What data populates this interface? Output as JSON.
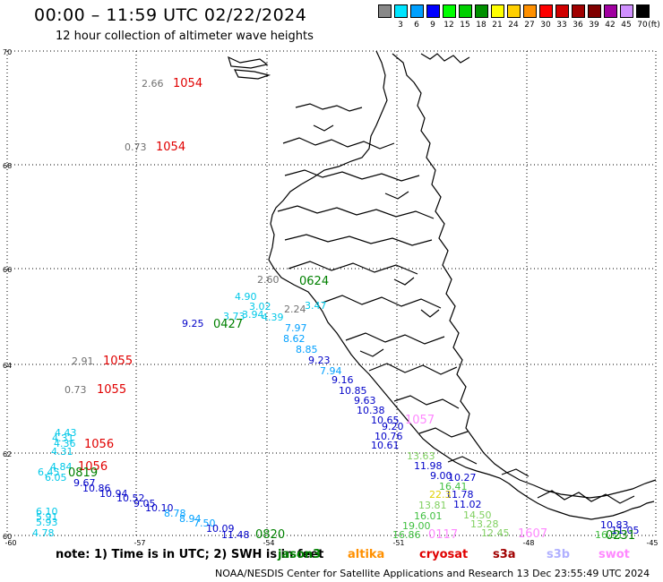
{
  "header": {
    "title": "00:00 – 11:59 UTC 02/22/2024",
    "subtitle": "12 hour collection of altimeter wave heights"
  },
  "colorbar": {
    "unit_label": "(ft)",
    "stops": [
      {
        "label": "",
        "color": "#888888"
      },
      {
        "label": "3",
        "color": "#00e5ff"
      },
      {
        "label": "6",
        "color": "#00a0ff"
      },
      {
        "label": "9",
        "color": "#0000ff"
      },
      {
        "label": "12",
        "color": "#00ff00"
      },
      {
        "label": "15",
        "color": "#00d000"
      },
      {
        "label": "18",
        "color": "#009000"
      },
      {
        "label": "21",
        "color": "#ffff00"
      },
      {
        "label": "24",
        "color": "#ffd000"
      },
      {
        "label": "27",
        "color": "#ff9000"
      },
      {
        "label": "30",
        "color": "#ff0000"
      },
      {
        "label": "33",
        "color": "#d00000"
      },
      {
        "label": "36",
        "color": "#a00000"
      },
      {
        "label": "39",
        "color": "#800000"
      },
      {
        "label": "42",
        "color": "#a000a0"
      },
      {
        "label": "45",
        "color": "#d090ff"
      },
      {
        "label": "70",
        "color": "#000000"
      }
    ]
  },
  "map": {
    "lat_labels": [
      "70",
      "68",
      "66",
      "64",
      "62",
      "60"
    ],
    "lon_labels": [
      "-60",
      "-57",
      "-54",
      "-51",
      "-48",
      "-45"
    ],
    "pass_times": [
      {
        "text": "1054",
        "color": "#e00000"
      },
      {
        "text": "1054",
        "color": "#e00000"
      },
      {
        "text": "1055",
        "color": "#e00000"
      },
      {
        "text": "1055",
        "color": "#e00000"
      },
      {
        "text": "1056",
        "color": "#e00000"
      },
      {
        "text": "1056",
        "color": "#e00000"
      },
      {
        "text": "0624",
        "color": "#008000"
      },
      {
        "text": "0427",
        "color": "#008000"
      },
      {
        "text": "0819",
        "color": "#008000"
      },
      {
        "text": "0820",
        "color": "#008000"
      },
      {
        "text": "0231",
        "color": "#008000"
      },
      {
        "text": "0117",
        "color": "#ff88ff"
      },
      {
        "text": "1607",
        "color": "#ff88ff"
      },
      {
        "text": "1057",
        "color": "#ff88ff"
      }
    ],
    "wave_heights": [
      {
        "text": "2.66",
        "color": "#707070"
      },
      {
        "text": "0.73",
        "color": "#707070"
      },
      {
        "text": "2.60",
        "color": "#707070"
      },
      {
        "text": "2.91",
        "color": "#707070"
      },
      {
        "text": "0.73",
        "color": "#707070"
      },
      {
        "text": "2.24",
        "color": "#707070"
      },
      {
        "text": "4.90",
        "color": "#00c8e8"
      },
      {
        "text": "3.02",
        "color": "#00c8e8"
      },
      {
        "text": "3.73",
        "color": "#00c8e8"
      },
      {
        "text": "3.94",
        "color": "#00c8e8"
      },
      {
        "text": "4.39",
        "color": "#00c8e8"
      },
      {
        "text": "3.47",
        "color": "#00c8e8"
      },
      {
        "text": "7.97",
        "color": "#00a0ff"
      },
      {
        "text": "8.62",
        "color": "#00a0ff"
      },
      {
        "text": "8.85",
        "color": "#00a0ff"
      },
      {
        "text": "9.25",
        "color": "#0000c8"
      },
      {
        "text": "9.23",
        "color": "#0000c8"
      },
      {
        "text": "7.94",
        "color": "#00a0ff"
      },
      {
        "text": "9.16",
        "color": "#0000c8"
      },
      {
        "text": "10.85",
        "color": "#0000c8"
      },
      {
        "text": "9.63",
        "color": "#0000c8"
      },
      {
        "text": "10.38",
        "color": "#0000c8"
      },
      {
        "text": "10.65",
        "color": "#0000c8"
      },
      {
        "text": "9.20",
        "color": "#0000c8"
      },
      {
        "text": "10.76",
        "color": "#0000c8"
      },
      {
        "text": "10.61",
        "color": "#0000c8"
      },
      {
        "text": "11.98",
        "color": "#0000c8"
      },
      {
        "text": "9.00",
        "color": "#0000c8"
      },
      {
        "text": "10.27",
        "color": "#0000c8"
      },
      {
        "text": "11.78",
        "color": "#0000c8"
      },
      {
        "text": "11.02",
        "color": "#0000c8"
      },
      {
        "text": "4.43",
        "color": "#00c8e8"
      },
      {
        "text": "4.31",
        "color": "#00c8e8"
      },
      {
        "text": "4.36",
        "color": "#00c8e8"
      },
      {
        "text": "4.31",
        "color": "#00c8e8"
      },
      {
        "text": "4.84",
        "color": "#00c8e8"
      },
      {
        "text": "6.45",
        "color": "#00c8e8"
      },
      {
        "text": "6.05",
        "color": "#00c8e8"
      },
      {
        "text": "9.67",
        "color": "#0000c8"
      },
      {
        "text": "10.86",
        "color": "#0000c8"
      },
      {
        "text": "10.94",
        "color": "#0000c8"
      },
      {
        "text": "10.52",
        "color": "#0000c8"
      },
      {
        "text": "9.05",
        "color": "#0000c8"
      },
      {
        "text": "10.10",
        "color": "#0000c8"
      },
      {
        "text": "8.78",
        "color": "#00a0ff"
      },
      {
        "text": "8.94",
        "color": "#00a0ff"
      },
      {
        "text": "7.50",
        "color": "#00a0ff"
      },
      {
        "text": "10.09",
        "color": "#0000c8"
      },
      {
        "text": "11.48",
        "color": "#0000c8"
      },
      {
        "text": "6.10",
        "color": "#00c8e8"
      },
      {
        "text": "5.91",
        "color": "#00c8e8"
      },
      {
        "text": "5.93",
        "color": "#00c8e8"
      },
      {
        "text": "4.78",
        "color": "#00c8e8"
      },
      {
        "text": "13.63",
        "color": "#80d060"
      },
      {
        "text": "16.41",
        "color": "#40c040"
      },
      {
        "text": "13.81",
        "color": "#80d060"
      },
      {
        "text": "22.3",
        "color": "#e0d000"
      },
      {
        "text": "16.01",
        "color": "#40c040"
      },
      {
        "text": "19.00",
        "color": "#40c040"
      },
      {
        "text": "16.86",
        "color": "#40c040"
      },
      {
        "text": "14.50",
        "color": "#80d060"
      },
      {
        "text": "13.28",
        "color": "#80d060"
      },
      {
        "text": "12.45",
        "color": "#80d060"
      },
      {
        "text": "16.31",
        "color": "#40c040"
      },
      {
        "text": "11.05",
        "color": "#0000c8"
      },
      {
        "text": "10.83",
        "color": "#0000c8"
      }
    ]
  },
  "note": {
    "prefix": "note: 1) Time is in UTC; 2) SWH is in feet",
    "satellites": [
      {
        "name": "jason3",
        "color": "#008000"
      },
      {
        "name": "altika",
        "color": "#ff9000"
      },
      {
        "name": "cryosat",
        "color": "#e00000"
      },
      {
        "name": "s3a",
        "color": "#a00000"
      },
      {
        "name": "s3b",
        "color": "#b0b0ff"
      },
      {
        "name": "swot",
        "color": "#ff88ff"
      }
    ]
  },
  "footer": "NOAA/NESDIS Center for Satellite Applications and Research    13 Dec 23:55:49 UTC 2024"
}
